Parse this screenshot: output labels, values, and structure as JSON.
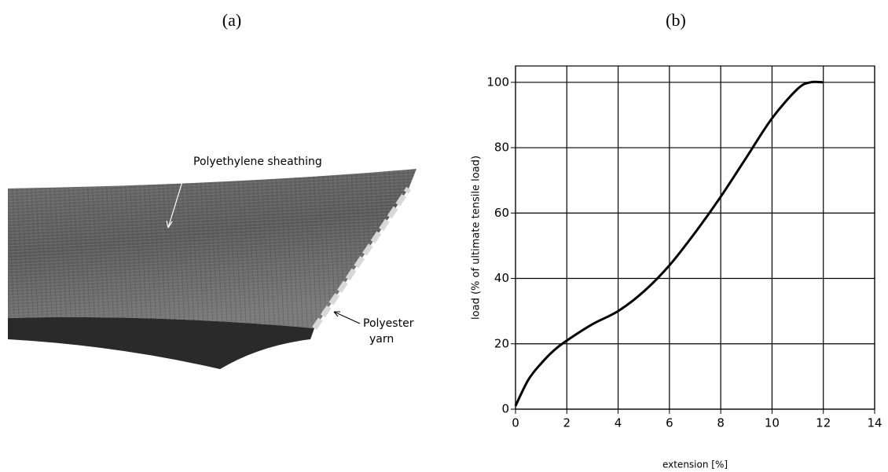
{
  "panels": {
    "a": {
      "label": "(a)",
      "annotations": [
        "Polyethylene  sheathing",
        "Polyester",
        "yarn"
      ]
    },
    "b": {
      "label": "(b)"
    }
  },
  "chart_data": {
    "type": "line",
    "x_label": "extension [%]",
    "y_label": "load (% of ultimate tensile load)",
    "x": [
      0,
      0.5,
      1,
      1.5,
      2,
      3,
      4,
      5,
      6,
      7,
      8,
      9,
      10,
      11,
      11.5,
      12
    ],
    "series": [
      {
        "color": "#000000",
        "values": [
          1,
          9,
          14,
          18,
          21,
          26,
          30,
          36,
          44,
          54,
          65,
          77,
          89,
          98,
          100,
          100
        ]
      }
    ],
    "xlim": [
      0,
      14
    ],
    "xticks": [
      0,
      2,
      4,
      6,
      8,
      10,
      12,
      14
    ],
    "ylim": [
      0,
      105
    ],
    "yticks": [
      0,
      20,
      40,
      60,
      80,
      100
    ],
    "grid": true
  }
}
